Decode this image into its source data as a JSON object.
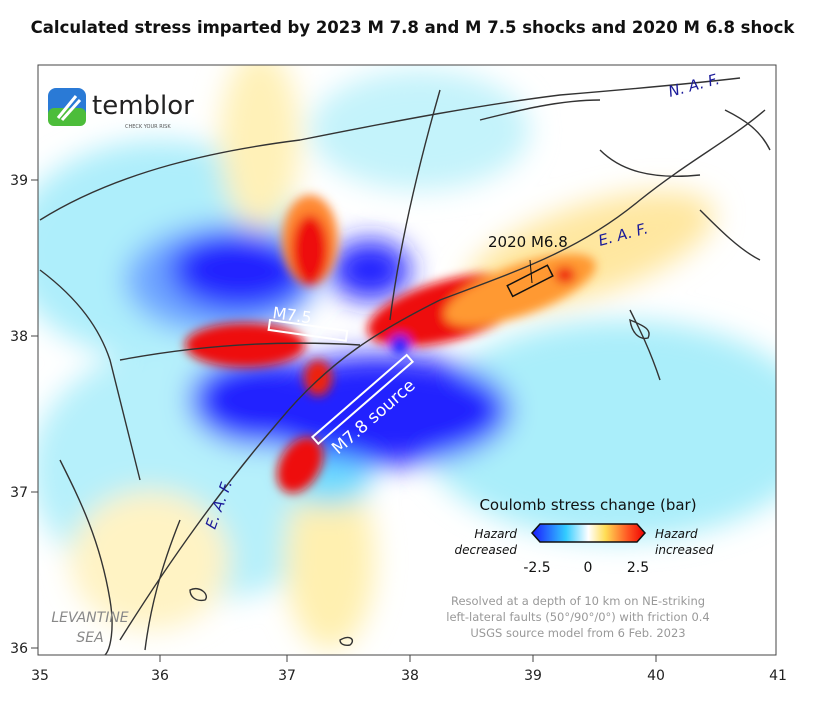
{
  "title": "Calculated stress imparted by 2023 M 7.8 and M 7.5 shocks and 2020 M 6.8 shock",
  "logo": {
    "name": "temblor",
    "tagline": "CHECK YOUR RISK"
  },
  "axes": {
    "x_ticks": [
      "35",
      "36",
      "37",
      "38",
      "39",
      "40",
      "41"
    ],
    "y_ticks": [
      "39",
      "38",
      "37",
      "36"
    ]
  },
  "labels": {
    "naf": "N. A. F.",
    "eaf_ne": "E. A. F.",
    "eaf_sw": "E. A. F.",
    "m68": "2020 M6.8",
    "m75": "M7.5",
    "m78": "M7.8 source",
    "sea_line1": "LEVANTINE",
    "sea_line2": "SEA"
  },
  "legend": {
    "title": "Coulomb stress change (bar)",
    "left_line1": "Hazard",
    "left_line2": "decreased",
    "right_line1": "Hazard",
    "right_line2": "increased",
    "min": "-2.5",
    "mid": "0",
    "max": "2.5",
    "colors": [
      "#1a1aff",
      "#33ccff",
      "#ffffff",
      "#ffdd55",
      "#ff3311",
      "#ee0000"
    ]
  },
  "notes": [
    "Resolved at a depth of 10 km on NE-striking",
    "left-lateral faults (50°/90°/0°) with friction 0.4",
    "USGS source model from 6 Feb. 2023"
  ]
}
